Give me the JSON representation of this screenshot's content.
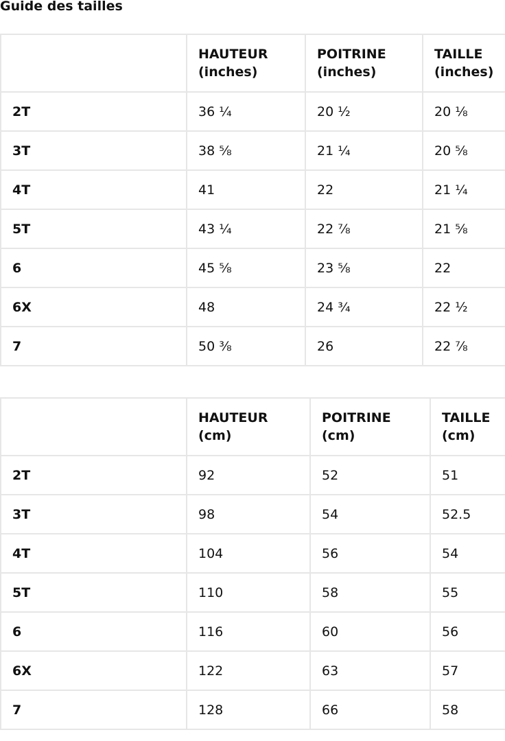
{
  "title": "Guide des tailles",
  "inches_table": {
    "headers": [
      "",
      "HAUTEUR\n(inches)",
      "POITRINE\n(inches)",
      "TAILLE\n(inches)"
    ],
    "header_parts": [
      [
        "",
        ""
      ],
      [
        "HAUTEUR",
        "(inches)"
      ],
      [
        "POITRINE",
        "(inches)"
      ],
      [
        "TAILLE",
        "(inches)"
      ]
    ],
    "rows": [
      [
        "2T",
        "36 ¼",
        "20 ½",
        "20 ⅛"
      ],
      [
        "3T",
        "38 ⅝",
        "21 ¼",
        "20 ⅝"
      ],
      [
        "4T",
        "41",
        "22",
        "21 ¼"
      ],
      [
        "5T",
        "43 ¼",
        "22 ⅞",
        "21 ⅝"
      ],
      [
        "6",
        "45 ⅝",
        "23 ⅝",
        "22"
      ],
      [
        "6X",
        "48",
        "24 ¾",
        "22 ½"
      ],
      [
        "7",
        "50 ⅜",
        "26",
        "22 ⅞"
      ]
    ]
  },
  "cm_table": {
    "header_parts": [
      [
        "",
        ""
      ],
      [
        "HAUTEUR",
        "(cm)"
      ],
      [
        "POITRINE",
        "(cm)"
      ],
      [
        "TAILLE",
        "(cm)"
      ]
    ],
    "rows": [
      [
        "2T",
        "92",
        "52",
        "51"
      ],
      [
        "3T",
        "98",
        "54",
        "52.5"
      ],
      [
        "4T",
        "104",
        "56",
        "54"
      ],
      [
        "5T",
        "110",
        "58",
        "55"
      ],
      [
        "6",
        "116",
        "60",
        "56"
      ],
      [
        "6X",
        "122",
        "63",
        "57"
      ],
      [
        "7",
        "128",
        "66",
        "58"
      ]
    ]
  }
}
